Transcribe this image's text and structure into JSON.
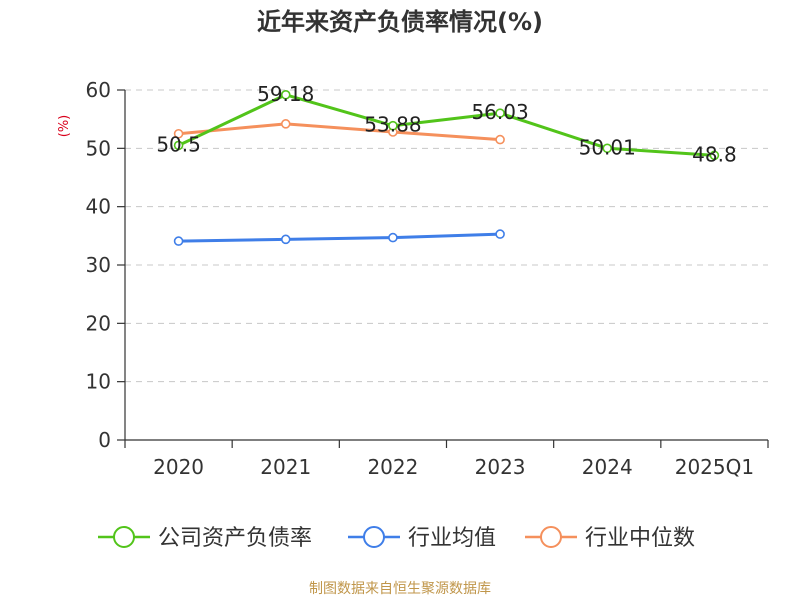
{
  "chart_data": {
    "type": "line",
    "title": "近年来资产负债率情况(%)",
    "ylabel": "(%)",
    "xlabel": "",
    "categories": [
      "2020",
      "2021",
      "2022",
      "2023",
      "2024",
      "2025Q1"
    ],
    "ylim": [
      0,
      60
    ],
    "yticks": [
      0,
      10,
      20,
      30,
      40,
      50,
      60
    ],
    "grid": true,
    "legend_position": "bottom",
    "series": [
      {
        "name": "公司资产负债率",
        "color": "#52c41a",
        "values": [
          50.5,
          59.18,
          53.88,
          56.03,
          50.01,
          48.8
        ],
        "show_labels": true
      },
      {
        "name": "行业均值",
        "color": "#3f7ee8",
        "values": [
          34.1,
          34.4,
          34.7,
          35.3,
          null,
          null
        ],
        "show_labels": false
      },
      {
        "name": "行业中位数",
        "color": "#f5905c",
        "values": [
          52.5,
          54.2,
          52.8,
          51.5,
          null,
          null
        ],
        "show_labels": false
      }
    ],
    "source": "制图数据来自恒生聚源数据库"
  }
}
